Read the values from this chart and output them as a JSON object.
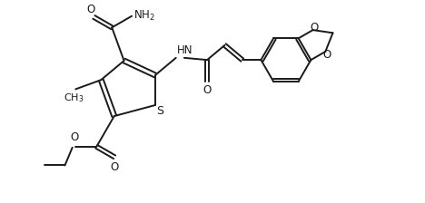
{
  "background_color": "#ffffff",
  "line_color": "#1a1a1a",
  "line_width": 1.4,
  "font_size": 8.5,
  "figsize": [
    4.68,
    2.24
  ],
  "dpi": 100,
  "xlim": [
    0,
    10
  ],
  "ylim": [
    0,
    4.8
  ]
}
